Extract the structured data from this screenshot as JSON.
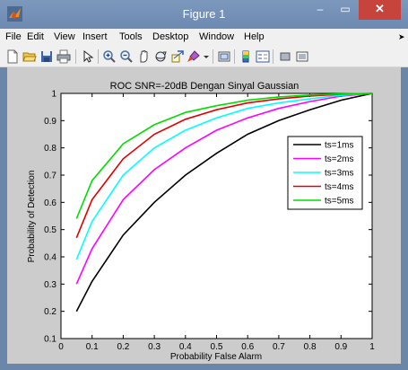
{
  "window": {
    "title": "Figure 1",
    "minimize_glyph": "–",
    "maximize_glyph": "▭",
    "close_glyph": "✕"
  },
  "menu": {
    "items": [
      "File",
      "Edit",
      "View",
      "Insert",
      "Tools",
      "Desktop",
      "Window",
      "Help"
    ],
    "overflow_glyph": "➤"
  },
  "toolbar": {
    "icons": [
      "new-figure-icon",
      "open-file-icon",
      "save-icon",
      "print-icon",
      "edit-plot-icon",
      "zoom-in-icon",
      "zoom-out-icon",
      "pan-icon",
      "rotate-3d-icon",
      "data-cursor-icon",
      "brush-icon",
      "dropdown-arrow-icon",
      "link-plot-icon",
      "insert-colorbar-icon",
      "insert-legend-icon",
      "hide-plot-tools-icon",
      "show-plot-tools-icon"
    ]
  },
  "colors": {
    "figure_bg": "#cccccc",
    "title_bar": "#6c89b0",
    "close_button": "#c7443c",
    "ts1": "#000000",
    "ts2": "#ff00ff",
    "ts3": "#00ffff",
    "ts4": "#e00000",
    "ts5": "#00dd00"
  },
  "chart_data": {
    "type": "line",
    "title": "ROC SNR=-20dB Dengan Sinyal Gaussian",
    "xlabel": "Probability False Alarm",
    "ylabel": "Probability of Detection",
    "xlim": [
      0,
      1
    ],
    "ylim": [
      0.1,
      1
    ],
    "xticks": [
      0,
      0.1,
      0.2,
      0.3,
      0.4,
      0.5,
      0.6,
      0.7,
      0.8,
      0.9,
      1
    ],
    "yticks": [
      0.1,
      0.2,
      0.3,
      0.4,
      0.5,
      0.6,
      0.7,
      0.8,
      0.9,
      1
    ],
    "grid": false,
    "legend_location": "right",
    "x": [
      0.05,
      0.1,
      0.2,
      0.3,
      0.4,
      0.5,
      0.6,
      0.7,
      0.8,
      0.9,
      1.0
    ],
    "series": [
      {
        "name": "ts=1ms",
        "color": "#000000",
        "values": [
          0.2,
          0.31,
          0.48,
          0.6,
          0.7,
          0.78,
          0.85,
          0.9,
          0.94,
          0.975,
          1.0
        ]
      },
      {
        "name": "ts=2ms",
        "color": "#ff00ff",
        "values": [
          0.3,
          0.43,
          0.61,
          0.72,
          0.8,
          0.865,
          0.91,
          0.945,
          0.97,
          0.99,
          1.0
        ]
      },
      {
        "name": "ts=3ms",
        "color": "#00ffff",
        "values": [
          0.39,
          0.53,
          0.7,
          0.8,
          0.865,
          0.91,
          0.945,
          0.965,
          0.98,
          0.993,
          1.0
        ]
      },
      {
        "name": "ts=4ms",
        "color": "#e00000",
        "values": [
          0.47,
          0.61,
          0.76,
          0.85,
          0.905,
          0.94,
          0.965,
          0.98,
          0.99,
          0.997,
          1.0
        ]
      },
      {
        "name": "ts=5ms",
        "color": "#00dd00",
        "values": [
          0.54,
          0.68,
          0.815,
          0.885,
          0.93,
          0.955,
          0.975,
          0.987,
          0.994,
          0.998,
          1.0
        ]
      }
    ]
  }
}
